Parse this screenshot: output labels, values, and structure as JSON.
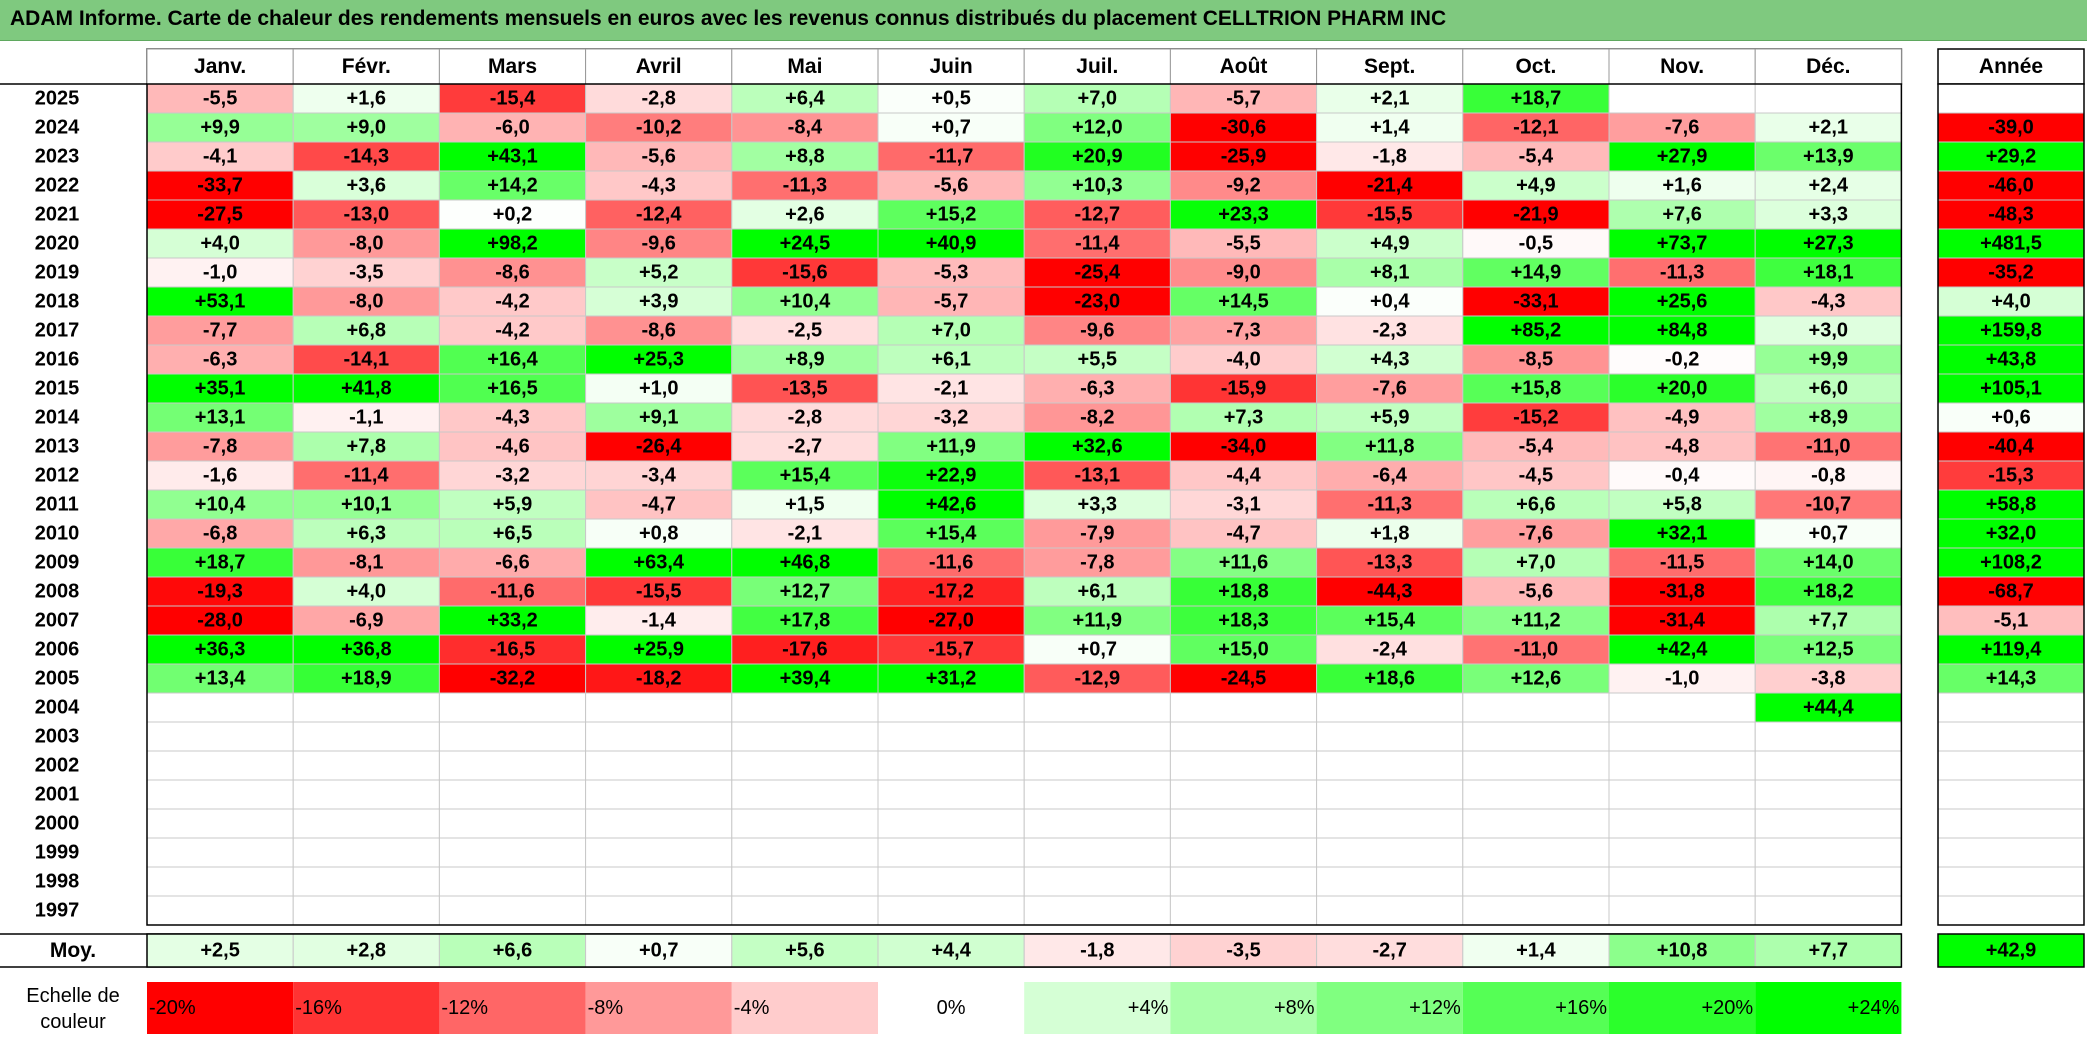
{
  "title": "ADAM Informe. Carte de chaleur des rendements mensuels en euros avec les revenus connus distribués du placement CELLTRION PHARM INC",
  "chart_data": {
    "type": "heatmap",
    "months": [
      "Janv.",
      "Févr.",
      "Mars",
      "Avril",
      "Mai",
      "Juin",
      "Juil.",
      "Août",
      "Sept.",
      "Oct.",
      "Nov.",
      "Déc."
    ],
    "annual_label": "Année",
    "rows": [
      {
        "year": "2025",
        "values": [
          "-5,5",
          "+1,6",
          "-15,4",
          "-2,8",
          "+6,4",
          "+0,5",
          "+7,0",
          "-5,7",
          "+2,1",
          "+18,7",
          "",
          ""
        ],
        "annual": ""
      },
      {
        "year": "2024",
        "values": [
          "+9,9",
          "+9,0",
          "-6,0",
          "-10,2",
          "-8,4",
          "+0,7",
          "+12,0",
          "-30,6",
          "+1,4",
          "-12,1",
          "-7,6",
          "+2,1"
        ],
        "annual": "-39,0"
      },
      {
        "year": "2023",
        "values": [
          "-4,1",
          "-14,3",
          "+43,1",
          "-5,6",
          "+8,8",
          "-11,7",
          "+20,9",
          "-25,9",
          "-1,8",
          "-5,4",
          "+27,9",
          "+13,9"
        ],
        "annual": "+29,2"
      },
      {
        "year": "2022",
        "values": [
          "-33,7",
          "+3,6",
          "+14,2",
          "-4,3",
          "-11,3",
          "-5,6",
          "+10,3",
          "-9,2",
          "-21,4",
          "+4,9",
          "+1,6",
          "+2,4"
        ],
        "annual": "-46,0"
      },
      {
        "year": "2021",
        "values": [
          "-27,5",
          "-13,0",
          "+0,2",
          "-12,4",
          "+2,6",
          "+15,2",
          "-12,7",
          "+23,3",
          "-15,5",
          "-21,9",
          "+7,6",
          "+3,3"
        ],
        "annual": "-48,3"
      },
      {
        "year": "2020",
        "values": [
          "+4,0",
          "-8,0",
          "+98,2",
          "-9,6",
          "+24,5",
          "+40,9",
          "-11,4",
          "-5,5",
          "+4,9",
          "-0,5",
          "+73,7",
          "+27,3"
        ],
        "annual": "+481,5"
      },
      {
        "year": "2019",
        "values": [
          "-1,0",
          "-3,5",
          "-8,6",
          "+5,2",
          "-15,6",
          "-5,3",
          "-25,4",
          "-9,0",
          "+8,1",
          "+14,9",
          "-11,3",
          "+18,1"
        ],
        "annual": "-35,2"
      },
      {
        "year": "2018",
        "values": [
          "+53,1",
          "-8,0",
          "-4,2",
          "+3,9",
          "+10,4",
          "-5,7",
          "-23,0",
          "+14,5",
          "+0,4",
          "-33,1",
          "+25,6",
          "-4,3"
        ],
        "annual": "+4,0"
      },
      {
        "year": "2017",
        "values": [
          "-7,7",
          "+6,8",
          "-4,2",
          "-8,6",
          "-2,5",
          "+7,0",
          "-9,6",
          "-7,3",
          "-2,3",
          "+85,2",
          "+84,8",
          "+3,0"
        ],
        "annual": "+159,8"
      },
      {
        "year": "2016",
        "values": [
          "-6,3",
          "-14,1",
          "+16,4",
          "+25,3",
          "+8,9",
          "+6,1",
          "+5,5",
          "-4,0",
          "+4,3",
          "-8,5",
          "-0,2",
          "+9,9"
        ],
        "annual": "+43,8"
      },
      {
        "year": "2015",
        "values": [
          "+35,1",
          "+41,8",
          "+16,5",
          "+1,0",
          "-13,5",
          "-2,1",
          "-6,3",
          "-15,9",
          "-7,6",
          "+15,8",
          "+20,0",
          "+6,0"
        ],
        "annual": "+105,1"
      },
      {
        "year": "2014",
        "values": [
          "+13,1",
          "-1,1",
          "-4,3",
          "+9,1",
          "-2,8",
          "-3,2",
          "-8,2",
          "+7,3",
          "+5,9",
          "-15,2",
          "-4,9",
          "+8,9"
        ],
        "annual": "+0,6"
      },
      {
        "year": "2013",
        "values": [
          "-7,8",
          "+7,8",
          "-4,6",
          "-26,4",
          "-2,7",
          "+11,9",
          "+32,6",
          "-34,0",
          "+11,8",
          "-5,4",
          "-4,8",
          "-11,0"
        ],
        "annual": "-40,4"
      },
      {
        "year": "2012",
        "values": [
          "-1,6",
          "-11,4",
          "-3,2",
          "-3,4",
          "+15,4",
          "+22,9",
          "-13,1",
          "-4,4",
          "-6,4",
          "-4,5",
          "-0,4",
          "-0,8"
        ],
        "annual": "-15,3"
      },
      {
        "year": "2011",
        "values": [
          "+10,4",
          "+10,1",
          "+5,9",
          "-4,7",
          "+1,5",
          "+42,6",
          "+3,3",
          "-3,1",
          "-11,3",
          "+6,6",
          "+5,8",
          "-10,7"
        ],
        "annual": "+58,8"
      },
      {
        "year": "2010",
        "values": [
          "-6,8",
          "+6,3",
          "+6,5",
          "+0,8",
          "-2,1",
          "+15,4",
          "-7,9",
          "-4,7",
          "+1,8",
          "-7,6",
          "+32,1",
          "+0,7"
        ],
        "annual": "+32,0"
      },
      {
        "year": "2009",
        "values": [
          "+18,7",
          "-8,1",
          "-6,6",
          "+63,4",
          "+46,8",
          "-11,6",
          "-7,8",
          "+11,6",
          "-13,3",
          "+7,0",
          "-11,5",
          "+14,0"
        ],
        "annual": "+108,2"
      },
      {
        "year": "2008",
        "values": [
          "-19,3",
          "+4,0",
          "-11,6",
          "-15,5",
          "+12,7",
          "-17,2",
          "+6,1",
          "+18,8",
          "-44,3",
          "-5,6",
          "-31,8",
          "+18,2"
        ],
        "annual": "-68,7"
      },
      {
        "year": "2007",
        "values": [
          "-28,0",
          "-6,9",
          "+33,2",
          "-1,4",
          "+17,8",
          "-27,0",
          "+11,9",
          "+18,3",
          "+15,4",
          "+11,2",
          "-31,4",
          "+7,7"
        ],
        "annual": "-5,1"
      },
      {
        "year": "2006",
        "values": [
          "+36,3",
          "+36,8",
          "-16,5",
          "+25,9",
          "-17,6",
          "-15,7",
          "+0,7",
          "+15,0",
          "-2,4",
          "-11,0",
          "+42,4",
          "+12,5"
        ],
        "annual": "+119,4"
      },
      {
        "year": "2005",
        "values": [
          "+13,4",
          "+18,9",
          "-32,2",
          "-18,2",
          "+39,4",
          "+31,2",
          "-12,9",
          "-24,5",
          "+18,6",
          "+12,6",
          "-1,0",
          "-3,8"
        ],
        "annual": "+14,3"
      },
      {
        "year": "2004",
        "values": [
          "",
          "",
          "",
          "",
          "",
          "",
          "",
          "",
          "",
          "",
          "",
          "+44,4"
        ],
        "annual": ""
      },
      {
        "year": "2003",
        "values": [
          "",
          "",
          "",
          "",
          "",
          "",
          "",
          "",
          "",
          "",
          "",
          ""
        ],
        "annual": ""
      },
      {
        "year": "2002",
        "values": [
          "",
          "",
          "",
          "",
          "",
          "",
          "",
          "",
          "",
          "",
          "",
          ""
        ],
        "annual": ""
      },
      {
        "year": "2001",
        "values": [
          "",
          "",
          "",
          "",
          "",
          "",
          "",
          "",
          "",
          "",
          "",
          ""
        ],
        "annual": ""
      },
      {
        "year": "2000",
        "values": [
          "",
          "",
          "",
          "",
          "",
          "",
          "",
          "",
          "",
          "",
          "",
          ""
        ],
        "annual": ""
      },
      {
        "year": "1999",
        "values": [
          "",
          "",
          "",
          "",
          "",
          "",
          "",
          "",
          "",
          "",
          "",
          ""
        ],
        "annual": ""
      },
      {
        "year": "1998",
        "values": [
          "",
          "",
          "",
          "",
          "",
          "",
          "",
          "",
          "",
          "",
          "",
          ""
        ],
        "annual": ""
      },
      {
        "year": "1997",
        "values": [
          "",
          "",
          "",
          "",
          "",
          "",
          "",
          "",
          "",
          "",
          "",
          ""
        ],
        "annual": ""
      }
    ],
    "average": {
      "label": "Moy.",
      "values": [
        "+2,5",
        "+2,8",
        "+6,6",
        "+0,7",
        "+5,6",
        "+4,4",
        "-1,8",
        "-3,5",
        "-2,7",
        "+1,4",
        "+10,8",
        "+7,7"
      ],
      "annual": "+42,9"
    },
    "scale": {
      "label_line1": "Echelle de",
      "label_line2": "couleur",
      "items": [
        {
          "label": "-20%",
          "value": -20
        },
        {
          "label": "-16%",
          "value": -16
        },
        {
          "label": "-12%",
          "value": -12
        },
        {
          "label": "-8%",
          "value": -8
        },
        {
          "label": "-4%",
          "value": -4
        },
        {
          "label": "0%",
          "value": 0
        },
        {
          "label": "+4%",
          "value": 4
        },
        {
          "label": "+8%",
          "value": 8
        },
        {
          "label": "+12%",
          "value": 12
        },
        {
          "label": "+16%",
          "value": 16
        },
        {
          "label": "+20%",
          "value": 20
        },
        {
          "label": "+24%",
          "value": 24
        }
      ]
    },
    "colors": {
      "negative_max": "#ff0000",
      "neutral": "#ffffff",
      "positive_max": "#00ff00",
      "title_background": "#7fc97f"
    }
  }
}
